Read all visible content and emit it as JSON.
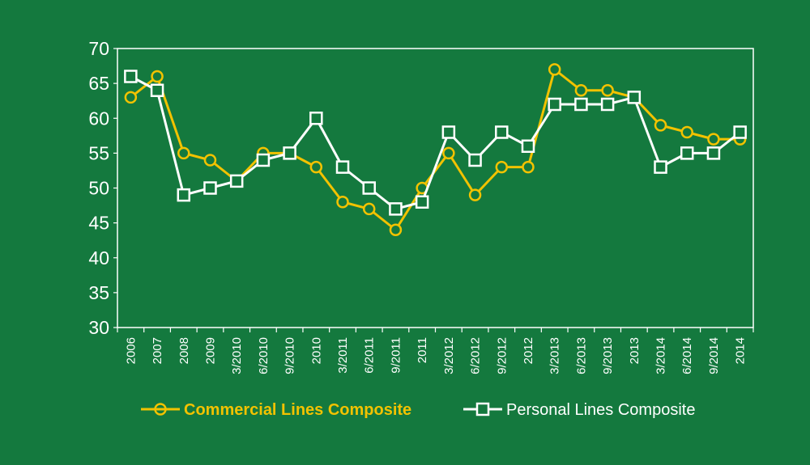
{
  "chart_data": {
    "type": "line",
    "title": "",
    "xlabel": "",
    "ylabel": "",
    "ylim": [
      30,
      70
    ],
    "yticks": [
      30,
      35,
      40,
      45,
      50,
      55,
      60,
      65,
      70
    ],
    "grid": false,
    "legend_position": "bottom",
    "categories": [
      "2006",
      "2007",
      "2008",
      "2009",
      "3/2010",
      "6/2010",
      "9/2010",
      "2010",
      "3/2011",
      "6/2011",
      "9/2011",
      "2011",
      "3/2012",
      "6/2012",
      "9/2012",
      "2012",
      "3/2013",
      "6/2013",
      "9/2013",
      "2013",
      "3/2014",
      "6/2014",
      "9/2014",
      "2014"
    ],
    "series": [
      {
        "name": "Commercial Lines Composite",
        "color": "#f2c200",
        "marker": "circle",
        "values": [
          63,
          66,
          55,
          54,
          51,
          55,
          55,
          53,
          48,
          47,
          44,
          50,
          55,
          49,
          53,
          53,
          67,
          64,
          64,
          63,
          59,
          58,
          57,
          57
        ]
      },
      {
        "name": "Personal Lines Composite",
        "color": "#ffffff",
        "marker": "square",
        "values": [
          66,
          64,
          49,
          50,
          51,
          54,
          55,
          60,
          53,
          50,
          47,
          48,
          58,
          54,
          58,
          56,
          62,
          62,
          62,
          63,
          53,
          55,
          55,
          58
        ]
      }
    ]
  }
}
